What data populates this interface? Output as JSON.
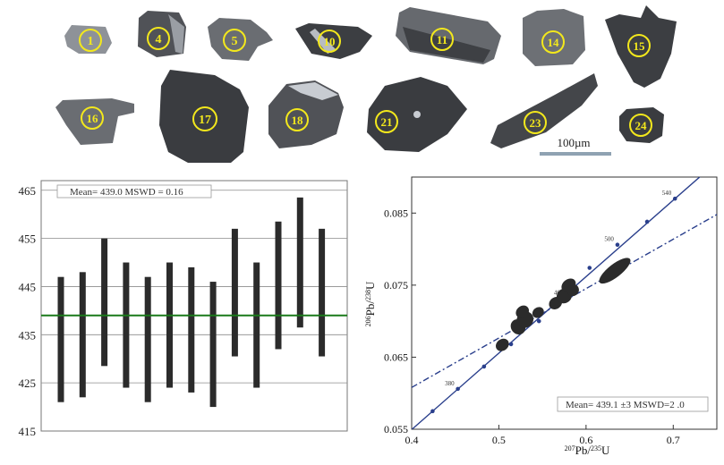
{
  "image_panel": {
    "grain_labels": [
      "1",
      "4",
      "5",
      "10",
      "11",
      "14",
      "15",
      "16",
      "17",
      "18",
      "21",
      "23",
      "24"
    ],
    "scale_bar_label": "100µm",
    "grain_color": "#4a4c50",
    "label_circle_color": "#f3e81c"
  },
  "chart_data": [
    {
      "type": "bar",
      "subtype": "floating-error-bar",
      "title": "",
      "annotation": "Mean= 439.0    MSWD = 0.16",
      "xlabel": "",
      "ylabel": "",
      "ylim": [
        415,
        467
      ],
      "yticks": [
        415,
        425,
        435,
        445,
        455,
        465
      ],
      "grid": true,
      "bar_color": "#2b2b2b",
      "mean_line": {
        "value": 439.0,
        "color": "#1a7a1a"
      },
      "series": [
        {
          "low": 421,
          "high": 447
        },
        {
          "low": 422,
          "high": 448
        },
        {
          "low": 428.5,
          "high": 455
        },
        {
          "low": 424,
          "high": 450
        },
        {
          "low": 421,
          "high": 447
        },
        {
          "low": 424,
          "high": 450
        },
        {
          "low": 423,
          "high": 449
        },
        {
          "low": 420,
          "high": 446
        },
        {
          "low": 430.5,
          "high": 457
        },
        {
          "low": 424,
          "high": 450
        },
        {
          "low": 432,
          "high": 458.5
        },
        {
          "low": 436.5,
          "high": 463.5
        },
        {
          "low": 430.5,
          "high": 457
        }
      ]
    },
    {
      "type": "scatter",
      "subtype": "concordia",
      "title": "",
      "annotation": "Mean= 439.1 ±3    MSWD=2 .0",
      "xlim": [
        0.4,
        0.75
      ],
      "ylim": [
        0.055,
        0.09
      ],
      "xticks": [
        "0.4",
        "0.5",
        "0.6",
        "0.7"
      ],
      "yticks": [
        "0.055",
        "0.065",
        "0.075",
        "0.085"
      ],
      "xlabel": {
        "sup": "207",
        "base": "Pb/",
        "sup2": "235",
        "end": "U"
      },
      "ylabel": {
        "sup": "206",
        "base": "Pb/",
        "sup2": "238",
        "end": "U"
      },
      "concordia_points": [
        {
          "x": 0.424,
          "y": 0.0575,
          "label": ""
        },
        {
          "x": 0.453,
          "y": 0.0606,
          "label": "380"
        },
        {
          "x": 0.483,
          "y": 0.0637,
          "label": ""
        },
        {
          "x": 0.514,
          "y": 0.0668,
          "label": ""
        },
        {
          "x": 0.546,
          "y": 0.07,
          "label": ""
        },
        {
          "x": 0.578,
          "y": 0.0732,
          "label": "460"
        },
        {
          "x": 0.604,
          "y": 0.0774,
          "label": ""
        },
        {
          "x": 0.636,
          "y": 0.0806,
          "label": "500"
        },
        {
          "x": 0.67,
          "y": 0.0838,
          "label": ""
        },
        {
          "x": 0.702,
          "y": 0.087,
          "label": "540"
        }
      ],
      "ellipses": [
        {
          "x": 0.504,
          "y": 0.0667,
          "rx": 0.008,
          "ry": 0.0008
        },
        {
          "x": 0.522,
          "y": 0.0692,
          "rx": 0.008,
          "ry": 0.0011
        },
        {
          "x": 0.53,
          "y": 0.0702,
          "rx": 0.01,
          "ry": 0.0011
        },
        {
          "x": 0.527,
          "y": 0.0713,
          "rx": 0.008,
          "ry": 0.0008
        },
        {
          "x": 0.545,
          "y": 0.0712,
          "rx": 0.007,
          "ry": 0.0007
        },
        {
          "x": 0.565,
          "y": 0.0725,
          "rx": 0.008,
          "ry": 0.0008
        },
        {
          "x": 0.575,
          "y": 0.0735,
          "rx": 0.009,
          "ry": 0.001
        },
        {
          "x": 0.58,
          "y": 0.075,
          "rx": 0.009,
          "ry": 0.0008
        },
        {
          "x": 0.585,
          "y": 0.0743,
          "rx": 0.007,
          "ry": 0.0008
        },
        {
          "x": 0.633,
          "y": 0.077,
          "rx": 0.022,
          "ry": 0.0009
        }
      ],
      "line_color": "#2a3f8c",
      "ellipse_color": "#2b2b2b"
    }
  ]
}
